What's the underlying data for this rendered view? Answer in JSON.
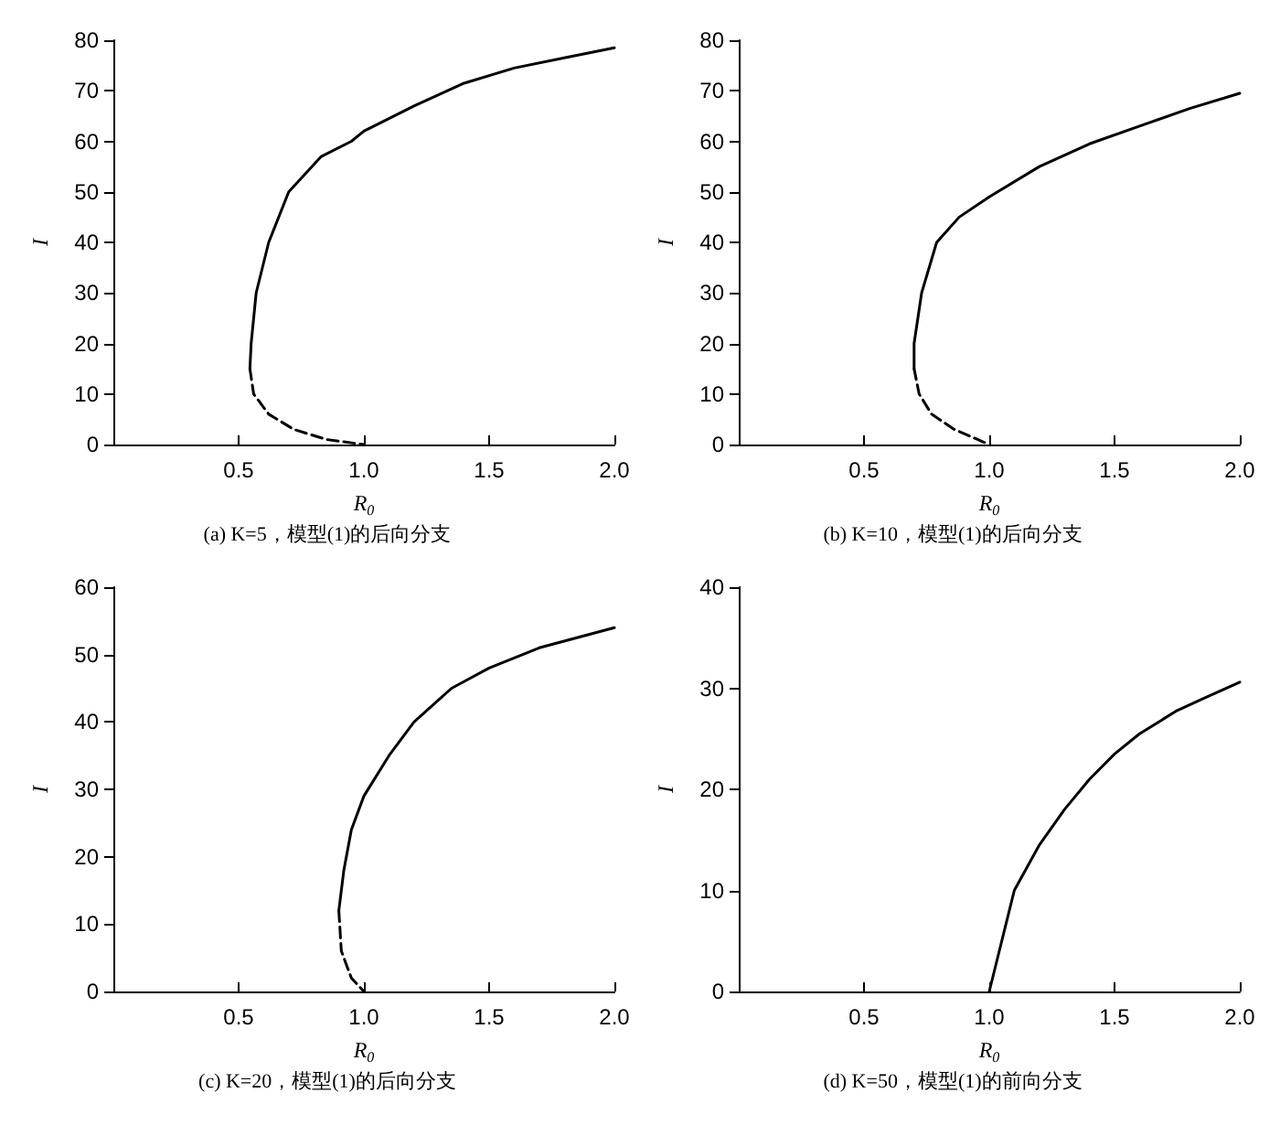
{
  "chart_data": [
    {
      "type": "line",
      "title": "(a) K=5，模型(1)的后向分支",
      "xlabel": "R$_{0}$",
      "ylabel": "I",
      "xlim": [
        0,
        2
      ],
      "xticks": [
        {
          "value": 0.5,
          "label": "0.5"
        },
        {
          "value": 1,
          "label": "1.0"
        },
        {
          "value": 1.5,
          "label": "1.5"
        },
        {
          "value": 2,
          "label": "2.0"
        }
      ],
      "ylim": [
        0,
        80
      ],
      "yticks": [
        0,
        10,
        20,
        30,
        40,
        50,
        60,
        70,
        80
      ],
      "grid": false,
      "series": [
        {
          "color": "#000000",
          "line_style": "solid",
          "x": [
            0.545,
            0.55,
            0.57,
            0.62,
            0.7,
            0.83,
            0.95,
            1.0,
            1.2,
            1.4,
            1.6,
            1.8,
            2.0
          ],
          "values": [
            15,
            20,
            30,
            40,
            50,
            57,
            60,
            62,
            67,
            71.5,
            74.5,
            76.5,
            78.5
          ]
        },
        {
          "color": "#000000",
          "line_style": "dashed",
          "x": [
            0.545,
            0.56,
            0.62,
            0.72,
            0.85,
            1.0
          ],
          "values": [
            15,
            10,
            6,
            3,
            1,
            0
          ]
        }
      ]
    },
    {
      "type": "line",
      "title": "(b) K=10，模型(1)的后向分支",
      "xlabel": "R$_{0}$",
      "ylabel": "I",
      "xlim": [
        0,
        2
      ],
      "xticks": [
        {
          "value": 0.5,
          "label": "0.5"
        },
        {
          "value": 1,
          "label": "1.0"
        },
        {
          "value": 1.5,
          "label": "1.5"
        },
        {
          "value": 2,
          "label": "2.0"
        }
      ],
      "ylim": [
        0,
        80
      ],
      "yticks": [
        0,
        10,
        20,
        30,
        40,
        50,
        60,
        70,
        80
      ],
      "grid": false,
      "series": [
        {
          "color": "#000000",
          "line_style": "solid",
          "x": [
            0.7,
            0.7,
            0.73,
            0.79,
            0.88,
            1.0,
            1.2,
            1.4,
            1.6,
            1.8,
            2.0
          ],
          "values": [
            15,
            20,
            30,
            40,
            45,
            49,
            55,
            59.5,
            63,
            66.5,
            69.5
          ]
        },
        {
          "color": "#000000",
          "line_style": "dashed",
          "x": [
            0.7,
            0.72,
            0.77,
            0.86,
            1.0
          ],
          "values": [
            15,
            10,
            6,
            3,
            0
          ]
        }
      ]
    },
    {
      "type": "line",
      "title": "(c) K=20，模型(1)的后向分支",
      "xlabel": "R$_{0}$",
      "ylabel": "I",
      "xlim": [
        0,
        2
      ],
      "xticks": [
        {
          "value": 0.5,
          "label": "0.5"
        },
        {
          "value": 1,
          "label": "1.0"
        },
        {
          "value": 1.5,
          "label": "1.5"
        },
        {
          "value": 2,
          "label": "2.0"
        }
      ],
      "ylim": [
        0,
        60
      ],
      "yticks": [
        0,
        10,
        20,
        30,
        40,
        50,
        60
      ],
      "grid": false,
      "series": [
        {
          "color": "#000000",
          "line_style": "solid",
          "x": [
            0.9,
            0.92,
            0.95,
            1.0,
            1.1,
            1.2,
            1.35,
            1.5,
            1.7,
            2.0
          ],
          "values": [
            12,
            18,
            24,
            29,
            35,
            40,
            45,
            48,
            51,
            54
          ]
        },
        {
          "color": "#000000",
          "line_style": "dashed",
          "x": [
            0.9,
            0.91,
            0.95,
            1.0
          ],
          "values": [
            12,
            6,
            2,
            0
          ]
        }
      ]
    },
    {
      "type": "line",
      "title": "(d) K=50，模型(1)的前向分支",
      "xlabel": "R$_{0}$",
      "ylabel": "I",
      "xlim": [
        0,
        2
      ],
      "xticks": [
        {
          "value": 0.5,
          "label": "0.5"
        },
        {
          "value": 1,
          "label": "1.0"
        },
        {
          "value": 1.5,
          "label": "1.5"
        },
        {
          "value": 2,
          "label": "2.0"
        }
      ],
      "ylim": [
        0,
        40
      ],
      "yticks": [
        0,
        10,
        20,
        30,
        40
      ],
      "grid": false,
      "series": [
        {
          "color": "#000000",
          "line_style": "solid",
          "x": [
            1.0,
            1.05,
            1.1,
            1.2,
            1.3,
            1.4,
            1.5,
            1.6,
            1.75,
            1.9,
            2.0
          ],
          "values": [
            0,
            5,
            10,
            14.5,
            18,
            21,
            23.5,
            25.5,
            27.8,
            29.5,
            30.6
          ]
        }
      ]
    }
  ]
}
